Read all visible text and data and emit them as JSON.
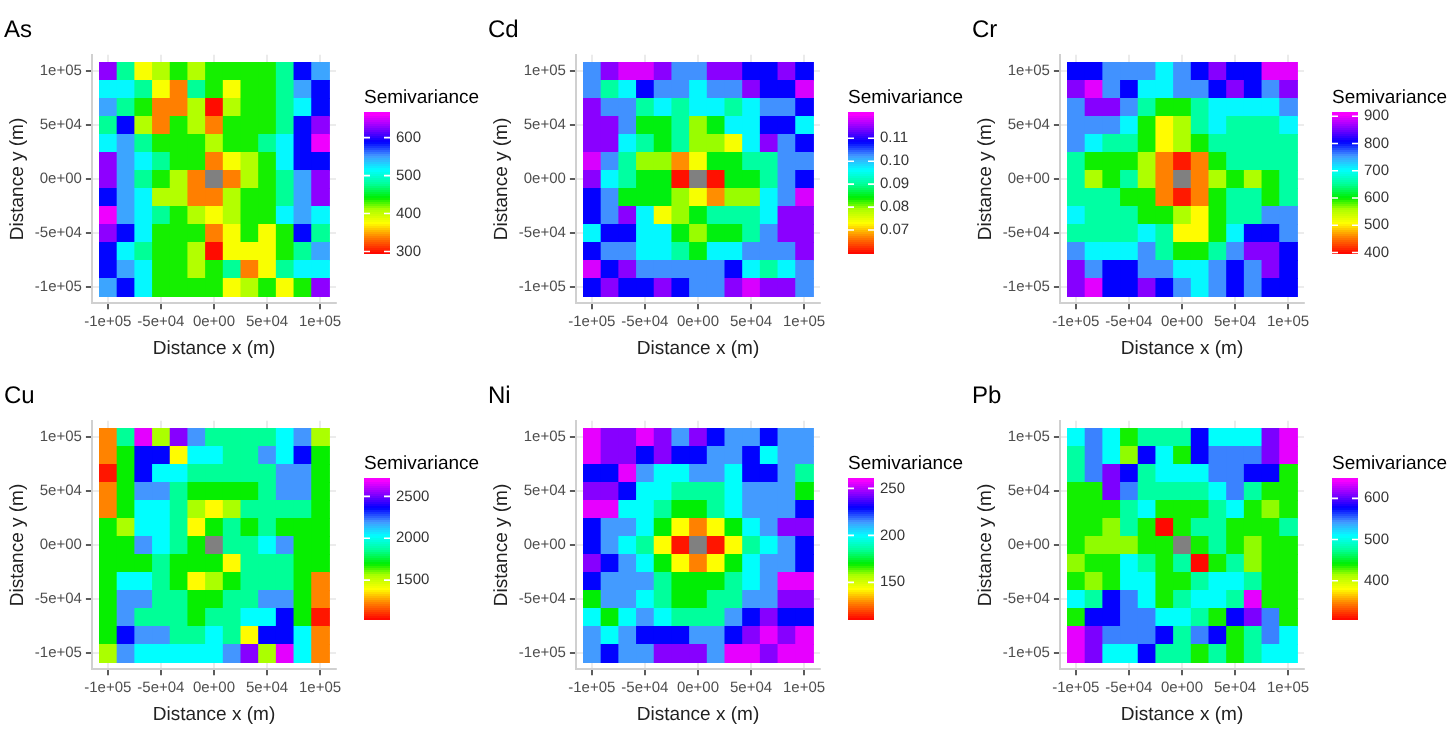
{
  "chart_data": [
    {
      "type": "heatmap",
      "title": "As",
      "xlabel": "Distance x (m)",
      "ylabel": "Distance y (m)",
      "clabel": "Semivariance",
      "grid": true,
      "x": [
        -100000,
        -83333,
        -66667,
        -50000,
        -33333,
        -16667,
        0,
        16667,
        33333,
        50000,
        66667,
        83333,
        100000
      ],
      "y": [
        100000,
        83333,
        66667,
        50000,
        33333,
        16667,
        0,
        -16667,
        -33333,
        -50000,
        -66667,
        -83333,
        -100000
      ],
      "xlim": [
        -115000,
        115000
      ],
      "ylim": [
        -115000,
        115000
      ],
      "xticks": [
        {
          "value": -100000,
          "label": "-1e+05"
        },
        {
          "value": -50000,
          "label": "-5e+04"
        },
        {
          "value": 0,
          "label": "0e+00"
        },
        {
          "value": 50000,
          "label": "5e+04"
        },
        {
          "value": 100000,
          "label": "1e+05"
        }
      ],
      "yticks": [
        {
          "value": -100000,
          "label": "-1e+05"
        },
        {
          "value": -50000,
          "label": "-5e+04"
        },
        {
          "value": 0,
          "label": "0e+00"
        },
        {
          "value": 50000,
          "label": "5e+04"
        },
        {
          "value": 100000,
          "label": "1e+05"
        }
      ],
      "clim": [
        296,
        665
      ],
      "cticks": [
        300,
        400,
        500,
        600
      ],
      "cells": [
        [
          630,
          480,
          380,
          410,
          440,
          410,
          440,
          440,
          440,
          440,
          480,
          590,
          550
        ],
        [
          520,
          520,
          480,
          380,
          340,
          480,
          440,
          380,
          440,
          440,
          480,
          550,
          590
        ],
        [
          550,
          480,
          440,
          340,
          340,
          410,
          300,
          410,
          440,
          440,
          480,
          520,
          590
        ],
        [
          480,
          590,
          410,
          340,
          440,
          410,
          340,
          440,
          440,
          440,
          480,
          590,
          630
        ],
        [
          520,
          550,
          480,
          440,
          440,
          440,
          410,
          440,
          440,
          480,
          520,
          590,
          660
        ],
        [
          630,
          550,
          520,
          480,
          440,
          440,
          340,
          380,
          410,
          440,
          520,
          590,
          590
        ],
        [
          630,
          550,
          480,
          440,
          410,
          340,
          null,
          340,
          410,
          440,
          480,
          550,
          630
        ],
        [
          590,
          550,
          520,
          410,
          410,
          340,
          340,
          410,
          440,
          440,
          480,
          550,
          630
        ],
        [
          660,
          550,
          520,
          480,
          440,
          410,
          380,
          410,
          440,
          440,
          520,
          550,
          520
        ],
        [
          630,
          590,
          520,
          440,
          440,
          440,
          340,
          380,
          440,
          380,
          440,
          590,
          480
        ],
        [
          590,
          520,
          480,
          440,
          440,
          410,
          300,
          380,
          380,
          380,
          440,
          480,
          550
        ],
        [
          590,
          550,
          520,
          440,
          440,
          410,
          440,
          480,
          340,
          380,
          480,
          520,
          520
        ],
        [
          550,
          590,
          520,
          440,
          440,
          440,
          440,
          380,
          410,
          440,
          380,
          440,
          630
        ]
      ]
    },
    {
      "type": "heatmap",
      "title": "Cd",
      "xlabel": "Distance x (m)",
      "ylabel": "Distance y (m)",
      "clabel": "Semivariance",
      "grid": true,
      "x": [
        -100000,
        -83333,
        -66667,
        -50000,
        -33333,
        -16667,
        0,
        16667,
        33333,
        50000,
        66667,
        83333,
        100000
      ],
      "y": [
        100000,
        83333,
        66667,
        50000,
        33333,
        16667,
        0,
        -16667,
        -33333,
        -50000,
        -66667,
        -83333,
        -100000
      ],
      "xlim": [
        -115000,
        115000
      ],
      "ylim": [
        -115000,
        115000
      ],
      "xticks": [
        {
          "value": -100000,
          "label": "-1e+05"
        },
        {
          "value": -50000,
          "label": "-5e+04"
        },
        {
          "value": 0,
          "label": "0e+00"
        },
        {
          "value": 50000,
          "label": "5e+04"
        },
        {
          "value": 100000,
          "label": "1e+05"
        }
      ],
      "yticks": [
        {
          "value": -100000,
          "label": "-1e+05"
        },
        {
          "value": -50000,
          "label": "-5e+04"
        },
        {
          "value": 0,
          "label": "0e+00"
        },
        {
          "value": 50000,
          "label": "5e+04"
        },
        {
          "value": 100000,
          "label": "1e+05"
        }
      ],
      "clim": [
        0.06,
        0.121
      ],
      "cticks": [
        0.07,
        0.08,
        0.09,
        {
          "value": 0.1,
          "label": "0.10"
        },
        0.11
      ],
      "cells": [
        [
          0.103,
          0.115,
          0.119,
          0.119,
          0.115,
          0.103,
          0.103,
          0.115,
          0.115,
          0.109,
          0.109,
          0.115,
          0.109
        ],
        [
          0.103,
          0.091,
          0.097,
          0.109,
          0.103,
          0.103,
          0.097,
          0.103,
          0.103,
          0.115,
          0.109,
          0.109,
          0.119
        ],
        [
          0.115,
          0.103,
          0.103,
          0.091,
          0.097,
          0.091,
          0.097,
          0.097,
          0.091,
          0.097,
          0.103,
          0.103,
          0.109
        ],
        [
          0.115,
          0.115,
          0.103,
          0.085,
          0.085,
          0.091,
          0.08,
          0.085,
          0.097,
          0.097,
          0.109,
          0.109,
          0.097
        ],
        [
          0.115,
          0.115,
          0.097,
          0.091,
          0.085,
          0.091,
          0.08,
          0.08,
          0.074,
          0.097,
          0.115,
          0.103,
          0.109
        ],
        [
          0.119,
          0.103,
          0.091,
          0.08,
          0.08,
          0.068,
          0.074,
          0.085,
          0.085,
          0.091,
          0.091,
          0.103,
          0.103
        ],
        [
          0.115,
          0.097,
          0.091,
          0.085,
          0.085,
          0.061,
          null,
          0.061,
          0.085,
          0.085,
          0.091,
          0.103,
          0.109
        ],
        [
          0.109,
          0.103,
          0.085,
          0.085,
          0.085,
          0.08,
          0.074,
          0.068,
          0.08,
          0.08,
          0.097,
          0.103,
          0.119
        ],
        [
          0.109,
          0.103,
          0.115,
          0.097,
          0.074,
          0.08,
          0.085,
          0.091,
          0.091,
          0.091,
          0.097,
          0.115,
          0.115
        ],
        [
          0.097,
          0.109,
          0.109,
          0.097,
          0.097,
          0.085,
          0.08,
          0.085,
          0.085,
          0.091,
          0.103,
          0.115,
          0.115
        ],
        [
          0.109,
          0.103,
          0.103,
          0.097,
          0.097,
          0.091,
          0.085,
          0.097,
          0.097,
          0.103,
          0.103,
          0.103,
          0.115
        ],
        [
          0.119,
          0.109,
          0.115,
          0.103,
          0.103,
          0.103,
          0.103,
          0.103,
          0.109,
          0.097,
          0.091,
          0.097,
          0.103
        ],
        [
          0.109,
          0.115,
          0.109,
          0.109,
          0.115,
          0.109,
          0.103,
          0.103,
          0.115,
          0.119,
          0.115,
          0.115,
          0.103
        ]
      ]
    },
    {
      "type": "heatmap",
      "title": "Cr",
      "xlabel": "Distance x (m)",
      "ylabel": "Distance y (m)",
      "clabel": "Semivariance",
      "grid": true,
      "x": [
        -100000,
        -83333,
        -66667,
        -50000,
        -33333,
        -16667,
        0,
        16667,
        33333,
        50000,
        66667,
        83333,
        100000
      ],
      "y": [
        100000,
        83333,
        66667,
        50000,
        33333,
        16667,
        0,
        -16667,
        -33333,
        -50000,
        -66667,
        -83333,
        -100000
      ],
      "xlim": [
        -115000,
        115000
      ],
      "ylim": [
        -115000,
        115000
      ],
      "xticks": [
        {
          "value": -100000,
          "label": "-1e+05"
        },
        {
          "value": -50000,
          "label": "-5e+04"
        },
        {
          "value": 0,
          "label": "0e+00"
        },
        {
          "value": 50000,
          "label": "5e+04"
        },
        {
          "value": 100000,
          "label": "1e+05"
        }
      ],
      "yticks": [
        {
          "value": -100000,
          "label": "-1e+05"
        },
        {
          "value": -50000,
          "label": "-5e+04"
        },
        {
          "value": 0,
          "label": "0e+00"
        },
        {
          "value": 50000,
          "label": "5e+04"
        },
        {
          "value": 100000,
          "label": "1e+05"
        }
      ],
      "clim": [
        398,
        912
      ],
      "cticks": [
        400,
        500,
        600,
        700,
        800,
        900
      ],
      "cells": [
        [
          810,
          810,
          760,
          760,
          760,
          710,
          760,
          810,
          860,
          810,
          810,
          900,
          900
        ],
        [
          860,
          900,
          760,
          810,
          710,
          710,
          760,
          760,
          810,
          860,
          810,
          760,
          860
        ],
        [
          760,
          860,
          860,
          760,
          660,
          600,
          600,
          660,
          710,
          710,
          710,
          710,
          760
        ],
        [
          760,
          760,
          760,
          710,
          600,
          510,
          560,
          660,
          710,
          660,
          660,
          660,
          710
        ],
        [
          760,
          710,
          660,
          660,
          600,
          510,
          560,
          600,
          660,
          660,
          660,
          660,
          660
        ],
        [
          660,
          600,
          600,
          600,
          560,
          460,
          410,
          460,
          600,
          660,
          660,
          660,
          660
        ],
        [
          660,
          560,
          600,
          660,
          560,
          460,
          null,
          460,
          560,
          600,
          560,
          600,
          660
        ],
        [
          660,
          660,
          660,
          600,
          600,
          460,
          410,
          460,
          600,
          660,
          660,
          600,
          660
        ],
        [
          710,
          660,
          660,
          660,
          600,
          600,
          560,
          510,
          600,
          660,
          660,
          760,
          760
        ],
        [
          660,
          660,
          660,
          660,
          710,
          660,
          510,
          510,
          600,
          710,
          810,
          810,
          760
        ],
        [
          760,
          710,
          710,
          710,
          760,
          660,
          600,
          600,
          660,
          760,
          860,
          860,
          810
        ],
        [
          860,
          760,
          810,
          810,
          760,
          760,
          710,
          710,
          760,
          810,
          760,
          860,
          810
        ],
        [
          860,
          900,
          810,
          810,
          860,
          810,
          760,
          710,
          760,
          810,
          760,
          810,
          810
        ]
      ]
    },
    {
      "type": "heatmap",
      "title": "Cu",
      "xlabel": "Distance x (m)",
      "ylabel": "Distance y (m)",
      "clabel": "Semivariance",
      "grid": true,
      "x": [
        -100000,
        -83333,
        -66667,
        -50000,
        -33333,
        -16667,
        0,
        16667,
        33333,
        50000,
        66667,
        83333,
        100000
      ],
      "y": [
        100000,
        83333,
        66667,
        50000,
        33333,
        16667,
        0,
        -16667,
        -33333,
        -50000,
        -66667,
        -83333,
        -100000
      ],
      "xlim": [
        -115000,
        115000
      ],
      "ylim": [
        -115000,
        115000
      ],
      "xticks": [
        {
          "value": -100000,
          "label": "-1e+05"
        },
        {
          "value": -50000,
          "label": "-5e+04"
        },
        {
          "value": 0,
          "label": "0e+00"
        },
        {
          "value": 50000,
          "label": "5e+04"
        },
        {
          "value": 100000,
          "label": "1e+05"
        }
      ],
      "yticks": [
        {
          "value": -100000,
          "label": "-1e+05"
        },
        {
          "value": -50000,
          "label": "-5e+04"
        },
        {
          "value": 0,
          "label": "0e+00"
        },
        {
          "value": 50000,
          "label": "5e+04"
        },
        {
          "value": 100000,
          "label": "1e+05"
        }
      ],
      "clim": [
        1036,
        2708
      ],
      "cticks": [
        1500,
        2000,
        2500
      ],
      "cells": [
        [
          1240,
          1870,
          2670,
          1570,
          2540,
          2210,
          1870,
          1870,
          1870,
          1870,
          2040,
          2210,
          1570
        ],
        [
          1240,
          1700,
          2370,
          2370,
          1400,
          2040,
          2040,
          1870,
          1870,
          2210,
          2040,
          2370,
          1700
        ],
        [
          1070,
          1700,
          2370,
          2040,
          2040,
          1870,
          1870,
          1870,
          1870,
          1870,
          2210,
          2210,
          1700
        ],
        [
          1240,
          1700,
          2210,
          2210,
          1870,
          1700,
          1700,
          1700,
          1700,
          1870,
          2210,
          2210,
          1700
        ],
        [
          1240,
          1700,
          2040,
          2040,
          1870,
          1570,
          1400,
          1570,
          1870,
          1870,
          1870,
          1870,
          1700
        ],
        [
          1700,
          1570,
          2040,
          2040,
          1870,
          1400,
          1700,
          1870,
          1700,
          1870,
          1700,
          1700,
          1700
        ],
        [
          1700,
          1700,
          2210,
          2040,
          1870,
          1700,
          null,
          1870,
          1870,
          2040,
          2210,
          1700,
          1700
        ],
        [
          1700,
          1700,
          1700,
          1870,
          1700,
          1700,
          1700,
          1400,
          1870,
          1870,
          1870,
          1700,
          1700
        ],
        [
          1700,
          2040,
          2040,
          1870,
          1700,
          1400,
          1570,
          1700,
          1870,
          1870,
          1870,
          1700,
          1240
        ],
        [
          1700,
          2210,
          2210,
          1870,
          1870,
          1700,
          1700,
          1870,
          1870,
          2210,
          2210,
          1700,
          1240
        ],
        [
          1700,
          2210,
          1870,
          1870,
          1870,
          1700,
          1870,
          1870,
          2040,
          2040,
          2370,
          1700,
          1070
        ],
        [
          1700,
          2370,
          2210,
          2210,
          1870,
          1870,
          2040,
          1870,
          1400,
          2370,
          2370,
          2040,
          1240
        ],
        [
          1570,
          2210,
          2040,
          2040,
          2040,
          2040,
          2040,
          2210,
          2540,
          1570,
          2670,
          2040,
          1240
        ]
      ]
    },
    {
      "type": "heatmap",
      "title": "Ni",
      "xlabel": "Distance x (m)",
      "ylabel": "Distance y (m)",
      "clabel": "Semivariance",
      "grid": true,
      "x": [
        -100000,
        -83333,
        -66667,
        -50000,
        -33333,
        -16667,
        0,
        16667,
        33333,
        50000,
        66667,
        83333,
        100000
      ],
      "y": [
        100000,
        83333,
        66667,
        50000,
        33333,
        16667,
        0,
        -16667,
        -33333,
        -50000,
        -66667,
        -83333,
        -100000
      ],
      "xlim": [
        -115000,
        115000
      ],
      "ylim": [
        -115000,
        115000
      ],
      "xticks": [
        {
          "value": -100000,
          "label": "-1e+05"
        },
        {
          "value": -50000,
          "label": "-5e+04"
        },
        {
          "value": 0,
          "label": "0e+00"
        },
        {
          "value": 50000,
          "label": "5e+04"
        },
        {
          "value": 100000,
          "label": "1e+05"
        }
      ],
      "yticks": [
        {
          "value": -100000,
          "label": "-1e+05"
        },
        {
          "value": -50000,
          "label": "-5e+04"
        },
        {
          "value": 0,
          "label": "0e+00"
        },
        {
          "value": 50000,
          "label": "5e+04"
        },
        {
          "value": 100000,
          "label": "1e+05"
        }
      ],
      "clim": [
        111,
        260
      ],
      "cticks": [
        150,
        200,
        250
      ],
      "cells": [
        [
          257,
          245,
          245,
          257,
          245,
          215,
          245,
          230,
          215,
          215,
          230,
          215,
          215
        ],
        [
          257,
          245,
          245,
          230,
          245,
          230,
          230,
          215,
          215,
          230,
          200,
          215,
          215
        ],
        [
          230,
          230,
          257,
          215,
          200,
          200,
          215,
          215,
          200,
          230,
          230,
          215,
          186
        ],
        [
          245,
          245,
          230,
          200,
          200,
          186,
          186,
          186,
          200,
          215,
          215,
          215,
          171
        ],
        [
          257,
          257,
          200,
          200,
          186,
          171,
          171,
          186,
          200,
          215,
          215,
          215,
          230
        ],
        [
          230,
          215,
          215,
          200,
          171,
          144,
          129,
          144,
          171,
          200,
          215,
          245,
          245
        ],
        [
          230,
          215,
          200,
          186,
          144,
          114,
          null,
          114,
          144,
          186,
          200,
          215,
          230
        ],
        [
          245,
          230,
          215,
          200,
          171,
          144,
          129,
          144,
          171,
          200,
          215,
          215,
          230
        ],
        [
          230,
          215,
          215,
          215,
          186,
          171,
          171,
          171,
          186,
          200,
          215,
          257,
          257
        ],
        [
          171,
          215,
          215,
          200,
          186,
          171,
          171,
          186,
          186,
          215,
          215,
          245,
          245
        ],
        [
          200,
          171,
          200,
          215,
          200,
          186,
          186,
          186,
          215,
          230,
          245,
          230,
          230
        ],
        [
          215,
          200,
          215,
          230,
          230,
          230,
          215,
          215,
          230,
          245,
          257,
          245,
          257
        ],
        [
          215,
          230,
          215,
          215,
          245,
          245,
          245,
          215,
          257,
          257,
          245,
          257,
          257
        ]
      ]
    },
    {
      "type": "heatmap",
      "title": "Pb",
      "xlabel": "Distance x (m)",
      "ylabel": "Distance y (m)",
      "clabel": "Semivariance",
      "grid": true,
      "x": [
        -100000,
        -83333,
        -66667,
        -50000,
        -33333,
        -16667,
        0,
        16667,
        33333,
        50000,
        66667,
        83333,
        100000
      ],
      "y": [
        100000,
        83333,
        66667,
        50000,
        33333,
        16667,
        0,
        -16667,
        -33333,
        -50000,
        -66667,
        -83333,
        -100000
      ],
      "xlim": [
        -115000,
        115000
      ],
      "ylim": [
        -115000,
        115000
      ],
      "xticks": [
        {
          "value": -100000,
          "label": "-1e+05"
        },
        {
          "value": -50000,
          "label": "-5e+04"
        },
        {
          "value": 0,
          "label": "0e+00"
        },
        {
          "value": 50000,
          "label": "5e+04"
        },
        {
          "value": 100000,
          "label": "1e+05"
        }
      ],
      "yticks": [
        {
          "value": -100000,
          "label": "-1e+05"
        },
        {
          "value": -50000,
          "label": "-5e+04"
        },
        {
          "value": 0,
          "label": "0e+00"
        },
        {
          "value": 50000,
          "label": "5e+04"
        },
        {
          "value": 100000,
          "label": "1e+05"
        }
      ],
      "clim": [
        307,
        647
      ],
      "cticks": [
        400,
        500,
        600
      ],
      "cells": [
        [
          510,
          550,
          510,
          440,
          480,
          480,
          480,
          580,
          510,
          510,
          510,
          610,
          640
        ],
        [
          480,
          550,
          510,
          420,
          580,
          510,
          440,
          580,
          550,
          550,
          550,
          610,
          640
        ],
        [
          480,
          550,
          610,
          580,
          480,
          510,
          510,
          510,
          550,
          550,
          580,
          580,
          440
        ],
        [
          440,
          440,
          610,
          550,
          480,
          480,
          480,
          480,
          510,
          550,
          480,
          440,
          440
        ],
        [
          440,
          440,
          440,
          480,
          510,
          440,
          440,
          440,
          480,
          510,
          440,
          420,
          440
        ],
        [
          440,
          440,
          420,
          480,
          440,
          310,
          440,
          480,
          480,
          440,
          440,
          440,
          480
        ],
        [
          440,
          420,
          420,
          420,
          440,
          440,
          null,
          440,
          480,
          440,
          420,
          440,
          440
        ],
        [
          420,
          440,
          440,
          510,
          480,
          440,
          480,
          310,
          440,
          480,
          420,
          440,
          440
        ],
        [
          440,
          420,
          440,
          510,
          510,
          440,
          440,
          480,
          510,
          510,
          480,
          440,
          440
        ],
        [
          510,
          480,
          580,
          550,
          510,
          440,
          480,
          510,
          510,
          480,
          640,
          440,
          440
        ],
        [
          440,
          580,
          580,
          550,
          550,
          510,
          510,
          480,
          440,
          580,
          610,
          550,
          440
        ],
        [
          640,
          610,
          550,
          550,
          550,
          580,
          480,
          550,
          580,
          440,
          480,
          550,
          510
        ],
        [
          640,
          610,
          510,
          510,
          580,
          480,
          480,
          440,
          480,
          440,
          480,
          510,
          510
        ]
      ]
    }
  ]
}
